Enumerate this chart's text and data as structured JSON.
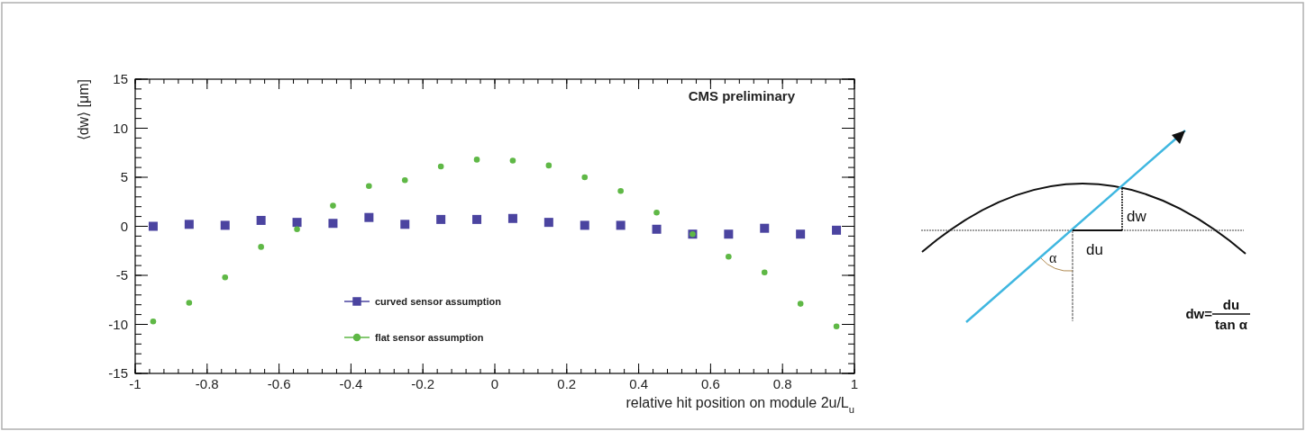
{
  "chart_data": {
    "type": "scatter",
    "xlabel": "relative hit position on module 2u/L$_{u}$",
    "ylabel": "⟨dw⟩ [μm]",
    "x": [
      -0.95,
      -0.85,
      -0.75,
      -0.65,
      -0.55,
      -0.45,
      -0.35,
      -0.25,
      -0.15,
      -0.05,
      0.05,
      0.15,
      0.25,
      0.35,
      0.45,
      0.55,
      0.65,
      0.75,
      0.85,
      0.95
    ],
    "series": [
      {
        "name": "curved sensor assumption",
        "color": "#4b44a0",
        "marker": "square",
        "values": [
          0.0,
          0.2,
          0.1,
          0.6,
          0.4,
          0.3,
          0.9,
          0.2,
          0.7,
          0.7,
          0.8,
          0.4,
          0.1,
          0.1,
          -0.3,
          -0.8,
          -0.8,
          -0.2,
          -0.8,
          -0.4
        ]
      },
      {
        "name": "flat sensor assumption",
        "color": "#5fb846",
        "marker": "circle",
        "values": [
          -9.7,
          -7.8,
          -5.2,
          -2.1,
          -0.3,
          2.1,
          4.1,
          4.7,
          6.1,
          6.8,
          6.7,
          6.2,
          5.0,
          3.6,
          1.4,
          -0.8,
          -3.1,
          -4.7,
          -7.9,
          -10.2
        ]
      }
    ],
    "xlim": [
      -1,
      1
    ],
    "ylim": [
      -15,
      15
    ],
    "xticks": [
      -1,
      -0.8,
      -0.6,
      -0.4,
      -0.2,
      0,
      0.2,
      0.4,
      0.6,
      0.8,
      1
    ],
    "yticks": [
      -15,
      -10,
      -5,
      0,
      5,
      10,
      15
    ],
    "legend": "bottom",
    "grid": false,
    "annotations": [
      "CMS preliminary",
      "dw",
      "du",
      "α",
      "dw=",
      "du",
      "tan α"
    ]
  }
}
